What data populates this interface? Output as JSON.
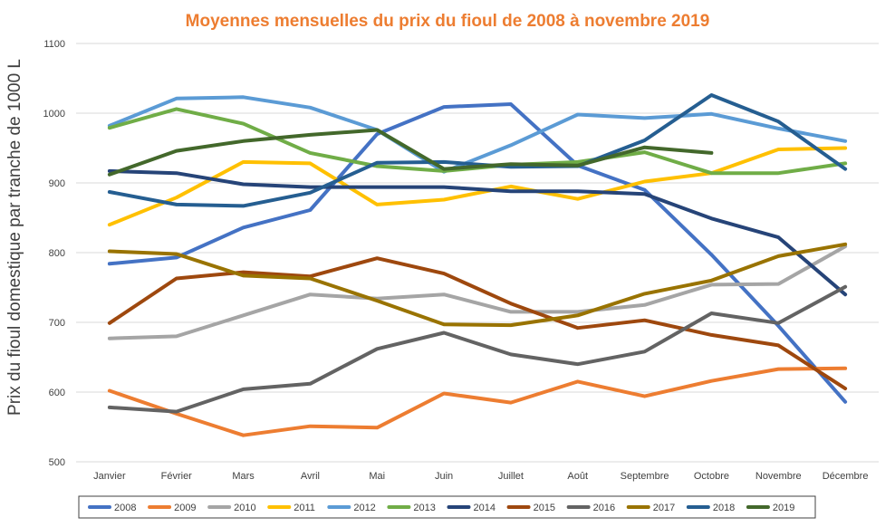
{
  "chart_data": {
    "type": "line",
    "title": "Moyennes mensuelles du prix du fioul de 2008 à novembre 2019",
    "xlabel": "",
    "ylabel": "Prix du fioul domestique par tranche de 1000 L",
    "ylim": [
      500,
      1100
    ],
    "yticks": [
      "500",
      "600",
      "700",
      "800",
      "900",
      "1000",
      "1100"
    ],
    "grid": true,
    "legend_position": "bottom",
    "categories": [
      "Janvier",
      "Février",
      "Mars",
      "Avril",
      "Mai",
      "Juin",
      "Juillet",
      "Août",
      "Septembre",
      "Octobre",
      "Novembre",
      "Décembre"
    ],
    "series": [
      {
        "name": "2008",
        "color": "#4472C4",
        "values": [
          784,
          793,
          836,
          861,
          970,
          1009,
          1013,
          925,
          890,
          797,
          695,
          586
        ]
      },
      {
        "name": "2009",
        "color": "#ED7D31",
        "values": [
          602,
          569,
          538,
          551,
          549,
          598,
          585,
          615,
          594,
          616,
          633,
          634
        ]
      },
      {
        "name": "2010",
        "color": "#A5A5A5",
        "values": [
          677,
          680,
          710,
          740,
          734,
          740,
          715,
          715,
          725,
          754,
          755,
          809
        ]
      },
      {
        "name": "2011",
        "color": "#FFC000",
        "values": [
          840,
          879,
          930,
          928,
          869,
          876,
          895,
          877,
          902,
          914,
          948,
          950
        ]
      },
      {
        "name": "2012",
        "color": "#5B9BD5",
        "values": [
          982,
          1021,
          1023,
          1008,
          976,
          916,
          954,
          998,
          993,
          999,
          978,
          960
        ]
      },
      {
        "name": "2013",
        "color": "#70AD47",
        "values": [
          979,
          1006,
          985,
          943,
          924,
          917,
          926,
          930,
          944,
          914,
          914,
          928
        ]
      },
      {
        "name": "2014",
        "color": "#264478",
        "values": [
          917,
          914,
          898,
          894,
          894,
          894,
          888,
          888,
          884,
          849,
          822,
          740
        ]
      },
      {
        "name": "2015",
        "color": "#9E480E",
        "values": [
          699,
          763,
          772,
          766,
          792,
          770,
          727,
          692,
          703,
          682,
          667,
          605
        ]
      },
      {
        "name": "2016",
        "color": "#636363",
        "values": [
          578,
          572,
          604,
          612,
          662,
          685,
          654,
          640,
          658,
          713,
          699,
          751
        ]
      },
      {
        "name": "2017",
        "color": "#997300",
        "values": [
          802,
          798,
          767,
          763,
          731,
          697,
          696,
          710,
          741,
          760,
          795,
          812
        ]
      },
      {
        "name": "2018",
        "color": "#255E91",
        "values": [
          887,
          869,
          867,
          886,
          929,
          930,
          923,
          924,
          961,
          1026,
          988,
          920
        ]
      },
      {
        "name": "2019",
        "color": "#43682B",
        "values": [
          912,
          946,
          960,
          969,
          976,
          920,
          927,
          925,
          951,
          943,
          null,
          null
        ]
      }
    ]
  }
}
